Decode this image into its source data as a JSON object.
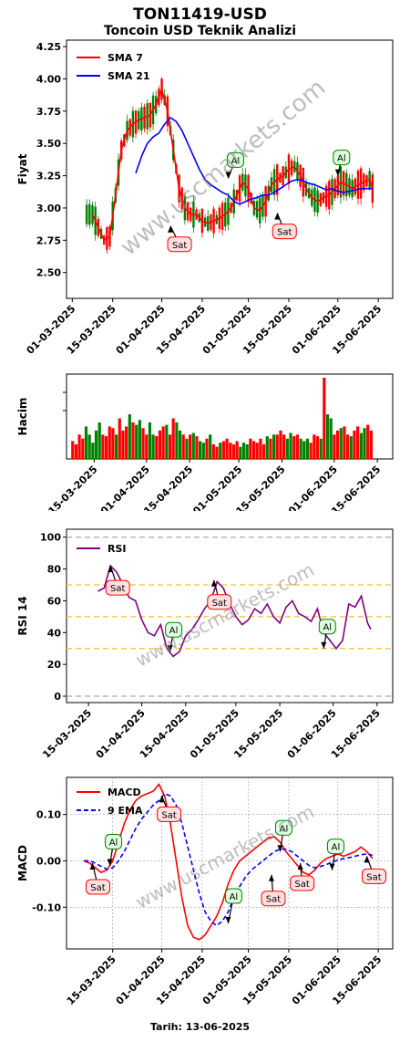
{
  "header": {
    "title": "TON11419-USD",
    "subtitle": "Toncoin USD Teknik Analizi"
  },
  "footer": {
    "date_label": "Tarih: 13-06-2025"
  },
  "watermark": "www.uscmarkets.com",
  "colors": {
    "sma7": "#ff0000",
    "sma21": "#0000ff",
    "up": "#008000",
    "down": "#ff0000",
    "rsi": "#800080",
    "macd": "#ff0000",
    "ema9": "#0000ff",
    "sell_box": "#ffe0e0",
    "buy_box": "#e0ffe0"
  },
  "chart_data": [
    {
      "type": "line",
      "panel": "price",
      "ylabel": "Fiyat",
      "ylim": [
        2.3,
        4.3
      ],
      "yticks": [
        "2.50",
        "2.75",
        "3.00",
        "3.25",
        "3.50",
        "3.75",
        "4.00",
        "4.25"
      ],
      "ytick_values": [
        2.5,
        2.75,
        3.0,
        3.25,
        3.5,
        3.75,
        4.0,
        4.25
      ],
      "xticks": [
        "01-03-2025",
        "15-03-2025",
        "01-04-2025",
        "15-04-2025",
        "01-05-2025",
        "15-05-2025",
        "01-06-2025",
        "15-06-2025"
      ],
      "legend": [
        "SMA 7",
        "SMA 21"
      ],
      "legend_position": "top-left",
      "series": [
        {
          "name": "SMA 7",
          "x": [
            "2025-03-08",
            "2025-03-10",
            "2025-03-12",
            "2025-03-14",
            "2025-03-16",
            "2025-03-18",
            "2025-03-20",
            "2025-03-22",
            "2025-03-24",
            "2025-03-26",
            "2025-03-28",
            "2025-03-30",
            "2025-04-01",
            "2025-04-03",
            "2025-04-05",
            "2025-04-07",
            "2025-04-09",
            "2025-04-11",
            "2025-04-13",
            "2025-04-15",
            "2025-04-17",
            "2025-04-19",
            "2025-04-21",
            "2025-04-23",
            "2025-04-25",
            "2025-04-27",
            "2025-04-29",
            "2025-05-01",
            "2025-05-03",
            "2025-05-05",
            "2025-05-07",
            "2025-05-09",
            "2025-05-11",
            "2025-05-13",
            "2025-05-15",
            "2025-05-17",
            "2025-05-19",
            "2025-05-21",
            "2025-05-23",
            "2025-05-25",
            "2025-05-27",
            "2025-05-29",
            "2025-05-31",
            "2025-06-02",
            "2025-06-04",
            "2025-06-06",
            "2025-06-08",
            "2025-06-10",
            "2025-06-12",
            "2025-06-13"
          ],
          "y": [
            2.95,
            2.85,
            2.75,
            2.78,
            3.1,
            3.45,
            3.6,
            3.65,
            3.68,
            3.7,
            3.72,
            3.8,
            3.92,
            3.75,
            3.45,
            3.15,
            3.0,
            2.95,
            2.95,
            2.9,
            2.88,
            2.9,
            2.92,
            2.95,
            3.0,
            3.1,
            3.2,
            3.15,
            3.0,
            2.98,
            3.05,
            3.18,
            3.22,
            3.25,
            3.3,
            3.32,
            3.25,
            3.15,
            3.08,
            3.05,
            3.08,
            3.1,
            3.15,
            3.2,
            3.18,
            3.15,
            3.18,
            3.2,
            3.22,
            3.15
          ]
        },
        {
          "name": "SMA 21",
          "x": [
            "2025-03-23",
            "2025-03-25",
            "2025-03-27",
            "2025-03-29",
            "2025-03-31",
            "2025-04-02",
            "2025-04-04",
            "2025-04-06",
            "2025-04-08",
            "2025-04-10",
            "2025-04-12",
            "2025-04-14",
            "2025-04-16",
            "2025-04-18",
            "2025-04-20",
            "2025-04-22",
            "2025-04-24",
            "2025-04-26",
            "2025-04-28",
            "2025-04-30",
            "2025-05-02",
            "2025-05-04",
            "2025-05-06",
            "2025-05-08",
            "2025-05-10",
            "2025-05-12",
            "2025-05-14",
            "2025-05-16",
            "2025-05-18",
            "2025-05-20",
            "2025-05-22",
            "2025-05-24",
            "2025-05-26",
            "2025-05-28",
            "2025-05-30",
            "2025-06-01",
            "2025-06-03",
            "2025-06-05",
            "2025-06-07",
            "2025-06-09",
            "2025-06-11",
            "2025-06-13"
          ],
          "y": [
            3.27,
            3.4,
            3.5,
            3.55,
            3.58,
            3.65,
            3.7,
            3.67,
            3.6,
            3.5,
            3.4,
            3.3,
            3.22,
            3.18,
            3.15,
            3.12,
            3.1,
            3.05,
            3.03,
            3.05,
            3.07,
            3.08,
            3.1,
            3.1,
            3.12,
            3.15,
            3.18,
            3.21,
            3.22,
            3.21,
            3.19,
            3.18,
            3.16,
            3.14,
            3.15,
            3.13,
            3.12,
            3.13,
            3.14,
            3.15,
            3.15,
            3.15
          ]
        }
      ],
      "annotations": [
        {
          "text": "Sat",
          "kind": "sell",
          "x": "2025-04-04",
          "y": 2.86
        },
        {
          "text": "Al",
          "kind": "buy",
          "x": "2025-04-24",
          "y": 3.23
        },
        {
          "text": "Sat",
          "kind": "sell",
          "x": "2025-05-11",
          "y": 2.96
        },
        {
          "text": "Al",
          "kind": "buy",
          "x": "2025-06-01",
          "y": 3.25
        }
      ]
    },
    {
      "type": "bar",
      "panel": "volume",
      "ylabel": "Hacim",
      "xticks": [
        "15-03-2025",
        "01-04-2025",
        "15-04-2025",
        "01-05-2025",
        "15-05-2025",
        "01-06-2025",
        "15-06-2025"
      ],
      "values_relative": [
        0.22,
        0.18,
        0.3,
        0.25,
        0.4,
        0.3,
        0.2,
        0.35,
        0.45,
        0.3,
        0.28,
        0.4,
        0.38,
        0.3,
        0.5,
        0.35,
        0.4,
        0.55,
        0.45,
        0.42,
        0.48,
        0.38,
        0.3,
        0.45,
        0.3,
        0.28,
        0.35,
        0.4,
        0.42,
        0.3,
        0.5,
        0.45,
        0.35,
        0.3,
        0.25,
        0.3,
        0.32,
        0.28,
        0.22,
        0.2,
        0.25,
        0.3,
        0.18,
        0.15,
        0.2,
        0.22,
        0.25,
        0.2,
        0.18,
        0.22,
        0.15,
        0.2,
        0.18,
        0.25,
        0.22,
        0.2,
        0.25,
        0.18,
        0.28,
        0.25,
        0.3,
        0.3,
        0.35,
        0.3,
        0.25,
        0.32,
        0.28,
        0.3,
        0.25,
        0.22,
        0.25,
        0.2,
        0.3,
        0.28,
        0.25,
        1.0,
        0.55,
        0.5,
        0.3,
        0.35,
        0.38,
        0.4,
        0.3,
        0.28,
        0.35,
        0.4,
        0.32,
        0.38,
        0.42,
        0.35
      ]
    },
    {
      "type": "line",
      "panel": "rsi",
      "ylabel": "RSI 14",
      "ylim": [
        -4,
        105
      ],
      "yticks": [
        "0",
        "20",
        "40",
        "60",
        "80",
        "100"
      ],
      "ytick_values": [
        0,
        20,
        40,
        60,
        80,
        100
      ],
      "xticks": [
        "15-03-2025",
        "01-04-2025",
        "15-04-2025",
        "01-05-2025",
        "15-05-2025",
        "01-06-2025",
        "15-06-2025"
      ],
      "legend": [
        "RSI"
      ],
      "legend_position": "top-left",
      "levels": [
        0,
        30,
        50,
        70,
        100
      ],
      "series": [
        {
          "name": "RSI",
          "x": [
            "2025-03-18",
            "2025-03-20",
            "2025-03-22",
            "2025-03-24",
            "2025-03-26",
            "2025-03-28",
            "2025-03-30",
            "2025-04-01",
            "2025-04-03",
            "2025-04-05",
            "2025-04-07",
            "2025-04-09",
            "2025-04-11",
            "2025-04-13",
            "2025-04-15",
            "2025-04-17",
            "2025-04-19",
            "2025-04-21",
            "2025-04-23",
            "2025-04-25",
            "2025-04-27",
            "2025-04-29",
            "2025-05-01",
            "2025-05-03",
            "2025-05-05",
            "2025-05-07",
            "2025-05-09",
            "2025-05-11",
            "2025-05-13",
            "2025-05-15",
            "2025-05-17",
            "2025-05-19",
            "2025-05-21",
            "2025-05-23",
            "2025-05-25",
            "2025-05-27",
            "2025-05-29",
            "2025-05-31",
            "2025-06-02",
            "2025-06-04",
            "2025-06-06",
            "2025-06-08",
            "2025-06-10",
            "2025-06-12",
            "2025-06-13"
          ],
          "y": [
            66,
            68,
            82,
            78,
            70,
            62,
            60,
            48,
            40,
            38,
            45,
            30,
            25,
            28,
            38,
            42,
            48,
            55,
            60,
            72,
            68,
            58,
            50,
            45,
            48,
            55,
            52,
            58,
            50,
            46,
            56,
            60,
            52,
            50,
            47,
            55,
            40,
            35,
            30,
            35,
            58,
            56,
            63,
            46,
            42
          ]
        }
      ],
      "annotations": [
        {
          "text": "Sat",
          "kind": "sell",
          "x": "2025-03-22",
          "y": 82
        },
        {
          "text": "Al",
          "kind": "buy",
          "x": "2025-04-10",
          "y": 28
        },
        {
          "text": "Sat",
          "kind": "sell",
          "x": "2025-04-24",
          "y": 73
        },
        {
          "text": "Al",
          "kind": "buy",
          "x": "2025-05-29",
          "y": 30
        }
      ]
    },
    {
      "type": "line",
      "panel": "macd",
      "ylabel": "MACD",
      "ylim": [
        -0.19,
        0.18
      ],
      "yticks": [
        "-0.10",
        "0.00",
        "0.10"
      ],
      "ytick_values": [
        -0.1,
        0.0,
        0.1
      ],
      "xticks": [
        "15-03-2025",
        "01-04-2025",
        "15-04-2025",
        "01-05-2025",
        "15-05-2025",
        "01-06-2025",
        "15-06-2025"
      ],
      "xlabel": "Tarih: 13-06-2025",
      "legend": [
        "MACD",
        "9 EMA"
      ],
      "legend_position": "top-left",
      "series": [
        {
          "name": "MACD",
          "x": [
            "2025-03-05",
            "2025-03-07",
            "2025-03-09",
            "2025-03-11",
            "2025-03-13",
            "2025-03-15",
            "2025-03-17",
            "2025-03-19",
            "2025-03-21",
            "2025-03-23",
            "2025-03-25",
            "2025-03-27",
            "2025-03-29",
            "2025-03-31",
            "2025-04-02",
            "2025-04-04",
            "2025-04-06",
            "2025-04-08",
            "2025-04-10",
            "2025-04-12",
            "2025-04-14",
            "2025-04-16",
            "2025-04-18",
            "2025-04-20",
            "2025-04-22",
            "2025-04-24",
            "2025-04-26",
            "2025-04-28",
            "2025-04-30",
            "2025-05-02",
            "2025-05-04",
            "2025-05-06",
            "2025-05-08",
            "2025-05-10",
            "2025-05-12",
            "2025-05-14",
            "2025-05-16",
            "2025-05-18",
            "2025-05-20",
            "2025-05-22",
            "2025-05-24",
            "2025-05-26",
            "2025-05-28",
            "2025-05-30",
            "2025-06-01",
            "2025-06-03",
            "2025-06-05",
            "2025-06-07",
            "2025-06-09",
            "2025-06-11",
            "2025-06-13"
          ],
          "y": [
            0.0,
            -0.005,
            -0.015,
            -0.025,
            -0.02,
            0.0,
            0.04,
            0.08,
            0.11,
            0.13,
            0.14,
            0.145,
            0.15,
            0.165,
            0.14,
            0.08,
            0.0,
            -0.08,
            -0.14,
            -0.165,
            -0.17,
            -0.16,
            -0.14,
            -0.12,
            -0.09,
            -0.05,
            -0.02,
            0.0,
            0.01,
            0.02,
            0.03,
            0.04,
            0.05,
            0.052,
            0.04,
            0.02,
            0.005,
            -0.01,
            -0.025,
            -0.03,
            -0.02,
            -0.005,
            0.005,
            0.01,
            0.015,
            0.01,
            0.015,
            0.02,
            0.03,
            0.02,
            0.005
          ]
        },
        {
          "name": "9 EMA",
          "x": [
            "2025-03-05",
            "2025-03-07",
            "2025-03-09",
            "2025-03-11",
            "2025-03-13",
            "2025-03-15",
            "2025-03-17",
            "2025-03-19",
            "2025-03-21",
            "2025-03-23",
            "2025-03-25",
            "2025-03-27",
            "2025-03-29",
            "2025-03-31",
            "2025-04-02",
            "2025-04-04",
            "2025-04-06",
            "2025-04-08",
            "2025-04-10",
            "2025-04-12",
            "2025-04-14",
            "2025-04-16",
            "2025-04-18",
            "2025-04-20",
            "2025-04-22",
            "2025-04-24",
            "2025-04-26",
            "2025-04-28",
            "2025-04-30",
            "2025-05-02",
            "2025-05-04",
            "2025-05-06",
            "2025-05-08",
            "2025-05-10",
            "2025-05-12",
            "2025-05-14",
            "2025-05-16",
            "2025-05-18",
            "2025-05-20",
            "2025-05-22",
            "2025-05-24",
            "2025-05-26",
            "2025-05-28",
            "2025-05-30",
            "2025-06-01",
            "2025-06-03",
            "2025-06-05",
            "2025-06-07",
            "2025-06-09",
            "2025-06-11",
            "2025-06-13"
          ],
          "y": [
            0.0,
            0.0,
            -0.005,
            -0.012,
            -0.018,
            -0.015,
            0.0,
            0.02,
            0.045,
            0.07,
            0.09,
            0.105,
            0.12,
            0.13,
            0.145,
            0.14,
            0.12,
            0.08,
            0.03,
            -0.02,
            -0.07,
            -0.11,
            -0.13,
            -0.14,
            -0.13,
            -0.11,
            -0.08,
            -0.055,
            -0.035,
            -0.02,
            -0.01,
            0.0,
            0.01,
            0.02,
            0.025,
            0.025,
            0.02,
            0.01,
            0.0,
            -0.01,
            -0.015,
            -0.012,
            -0.008,
            -0.003,
            0.002,
            0.005,
            0.007,
            0.01,
            0.013,
            0.015,
            0.012
          ]
        }
      ],
      "annotations": [
        {
          "text": "Sat",
          "kind": "sell",
          "x": "2025-03-08",
          "y": -0.005
        },
        {
          "text": "Al",
          "kind": "buy",
          "x": "2025-03-14",
          "y": -0.01
        },
        {
          "text": "Sat",
          "kind": "sell",
          "x": "2025-04-01",
          "y": 0.14
        },
        {
          "text": "Al",
          "kind": "buy",
          "x": "2025-04-24",
          "y": -0.135
        },
        {
          "text": "Sat",
          "kind": "sell",
          "x": "2025-05-09",
          "y": -0.03
        },
        {
          "text": "Al",
          "kind": "buy",
          "x": "2025-05-12",
          "y": 0.02
        },
        {
          "text": "Sat",
          "kind": "sell",
          "x": "2025-05-19",
          "y": -0.005
        },
        {
          "text": "Al",
          "kind": "buy",
          "x": "2025-05-30",
          "y": -0.02
        },
        {
          "text": "Sat",
          "kind": "sell",
          "x": "2025-06-11",
          "y": 0.01
        }
      ]
    }
  ]
}
